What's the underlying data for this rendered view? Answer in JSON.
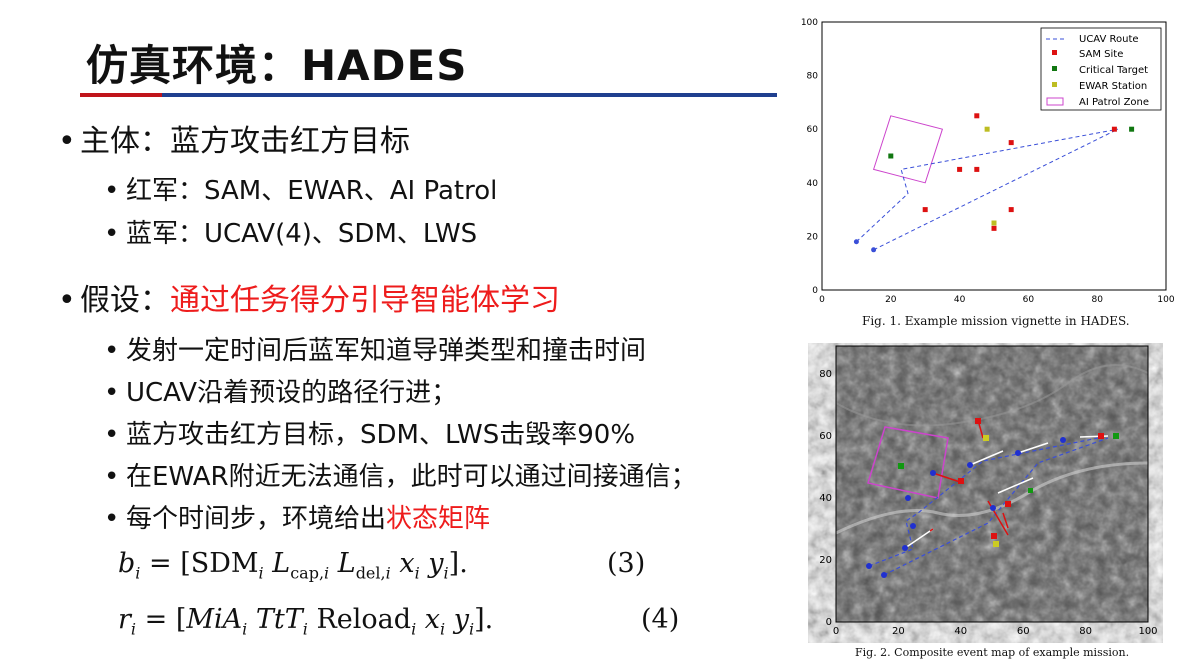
{
  "slide": {
    "title": "仿真环境：HADES",
    "bullets": [
      {
        "label": "主体：蓝方攻击红方目标"
      },
      {
        "label": "红军：SAM、EWAR、AI Patrol"
      },
      {
        "label": "蓝军：UCAV(4)、SDM、LWS"
      },
      {
        "label_prefix": "假设：",
        "label_highlight": "通过任务得分引导智能体学习"
      },
      {
        "label": "发射一定时间后蓝军知道导弹类型和撞击时间"
      },
      {
        "label": "UCAV沿着预设的路径行进；"
      },
      {
        "label": "蓝方攻击红方目标，SDM、LWS击毁率90%"
      },
      {
        "label": "在EWAR附近无法通信，此时可以通过间接通信；"
      },
      {
        "label_prefix": "每个时间步，环境给出",
        "label_highlight": "状态矩阵"
      }
    ],
    "equations": [
      {
        "lhs": "b",
        "body": "SDM",
        "l_cap": "L",
        "cap": "cap,",
        "l_del": "L",
        "del": "del,",
        "number": "(3)"
      },
      {
        "lhs": "r",
        "body": "MiA",
        "ttt": "TtT",
        "reload": "Reload",
        "number": "(4)"
      }
    ],
    "highlight_color": "#ee1c1c"
  },
  "figure1": {
    "caption": "Fig. 1.   Example mission vignette in HADES.",
    "legend": [
      "UCAV Route",
      "SAM Site",
      "Critical Target",
      "EWAR Station",
      "AI Patrol Zone"
    ],
    "ticks": [
      "0",
      "20",
      "40",
      "60",
      "80",
      "100"
    ],
    "colors": {
      "route": "#3a4fd8",
      "sam": "#dd1111",
      "critical": "#117711",
      "ewar": "#bdbd22",
      "patrol": "#cc44cc"
    },
    "route_points": [
      [
        10,
        18
      ],
      [
        25,
        36
      ],
      [
        23,
        45
      ],
      [
        86,
        60
      ],
      [
        15,
        15
      ]
    ],
    "sam_sites": [
      [
        45,
        65
      ],
      [
        40,
        45
      ],
      [
        45,
        45
      ],
      [
        55,
        55
      ],
      [
        30,
        30
      ],
      [
        55,
        30
      ],
      [
        50,
        23
      ],
      [
        85,
        60
      ]
    ],
    "critical_targets": [
      [
        20,
        50
      ],
      [
        90,
        60
      ]
    ],
    "ewar_stations": [
      [
        48,
        60
      ],
      [
        50,
        25
      ]
    ],
    "patrol_zone": [
      [
        15,
        45
      ],
      [
        30,
        40
      ],
      [
        35,
        60
      ],
      [
        20,
        65
      ]
    ]
  },
  "figure2": {
    "caption": "Fig. 2.   Composite event map of example mission.",
    "ticks_x": [
      "0",
      "20",
      "40",
      "60",
      "80",
      "100"
    ],
    "ticks_y": [
      "0",
      "20",
      "40",
      "60",
      "80"
    ]
  }
}
